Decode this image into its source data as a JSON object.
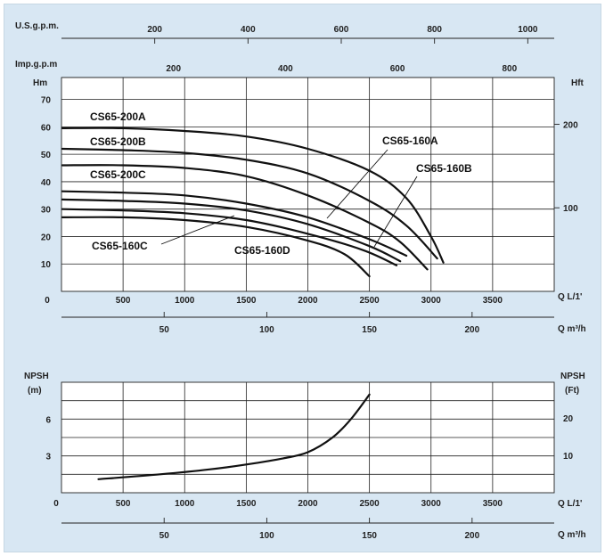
{
  "chart_data": [
    {
      "type": "line",
      "title": "",
      "x_axis": {
        "label": "Q L/1'",
        "ticks": [
          "0",
          "500",
          "1000",
          "1500",
          "2000",
          "2500",
          "3000",
          "3500"
        ],
        "range": [
          0,
          4000
        ]
      },
      "y_axis_left": {
        "label": "Hm",
        "ticks": [
          "10",
          "20",
          "30",
          "40",
          "50",
          "60",
          "70"
        ],
        "range": [
          0,
          78
        ]
      },
      "y_axis_right": {
        "label": "Hft",
        "ticks": [
          "100",
          "200"
        ]
      },
      "top_axis_usgpm": {
        "label": "U.S.g.p.m.",
        "ticks": [
          "200",
          "400",
          "600",
          "800",
          "1000"
        ]
      },
      "top_axis_impgpm": {
        "label": "Imp.g.p.m",
        "ticks": [
          "200",
          "400",
          "600",
          "800"
        ]
      },
      "bottom_axis_m3h": {
        "label": "Q m³/h",
        "ticks": [
          "50",
          "100",
          "150",
          "200"
        ]
      },
      "grid": true,
      "series": [
        {
          "name": "CS65-200A",
          "x": [
            0,
            500,
            1000,
            1500,
            2000,
            2500,
            2800,
            3000,
            3100
          ],
          "y": [
            59.5,
            59.5,
            58.5,
            56.5,
            52,
            44,
            34,
            20,
            10.5
          ]
        },
        {
          "name": "CS65-200B",
          "x": [
            0,
            500,
            1000,
            1500,
            2000,
            2500,
            2800,
            3050
          ],
          "y": [
            52,
            51.5,
            50.5,
            48,
            43,
            33,
            24,
            12
          ]
        },
        {
          "name": "CS65-200C",
          "x": [
            0,
            500,
            1000,
            1500,
            2000,
            2500,
            2750,
            2970
          ],
          "y": [
            46,
            46,
            45,
            42,
            35,
            25,
            18,
            8
          ]
        },
        {
          "name": "CS65-160A",
          "x": [
            0,
            500,
            1000,
            1500,
            2000,
            2500,
            2800
          ],
          "y": [
            36.5,
            36,
            35,
            32,
            27,
            19,
            13
          ]
        },
        {
          "name": "CS65-160B",
          "x": [
            0,
            500,
            1000,
            1500,
            2000,
            2500,
            2750
          ],
          "y": [
            33.5,
            33,
            32,
            29.5,
            24.5,
            16.5,
            11
          ]
        },
        {
          "name": "CS65-160C",
          "x": [
            0,
            500,
            1000,
            1500,
            2000,
            2450,
            2720
          ],
          "y": [
            30,
            29.5,
            28.5,
            26,
            21,
            15,
            9.5
          ]
        },
        {
          "name": "CS65-160D",
          "x": [
            0,
            500,
            1000,
            1500,
            2000,
            2300,
            2500
          ],
          "y": [
            27,
            27,
            26,
            23.5,
            18.5,
            13.5,
            5.5
          ]
        }
      ],
      "annotations": [
        "CS65-200A",
        "CS65-200B",
        "CS65-200C",
        "CS65-160A",
        "CS65-160B",
        "CS65-160C",
        "CS65-160D"
      ]
    },
    {
      "type": "line",
      "title": "",
      "x_axis": {
        "label": "Q L/1'",
        "ticks": [
          "0",
          "500",
          "1000",
          "1500",
          "2000",
          "2500",
          "3000",
          "3500"
        ],
        "range": [
          0,
          4000
        ]
      },
      "y_axis_left": {
        "label_line1": "NPSH",
        "label_line2": "(m)",
        "ticks": [
          "3",
          "6"
        ],
        "range": [
          0,
          9
        ]
      },
      "y_axis_right": {
        "label_line1": "NPSH",
        "label_line2": "(Ft)",
        "ticks": [
          "10",
          "20"
        ]
      },
      "bottom_axis_m3h": {
        "label": "Q m³/h",
        "ticks": [
          "50",
          "100",
          "150",
          "200"
        ]
      },
      "grid": true,
      "series": [
        {
          "x": [
            300,
            800,
            1200,
            1500,
            1800,
            2000,
            2200,
            2350,
            2500
          ],
          "y": [
            1.1,
            1.5,
            1.9,
            2.3,
            2.8,
            3.3,
            4.5,
            6,
            8
          ]
        }
      ]
    }
  ]
}
